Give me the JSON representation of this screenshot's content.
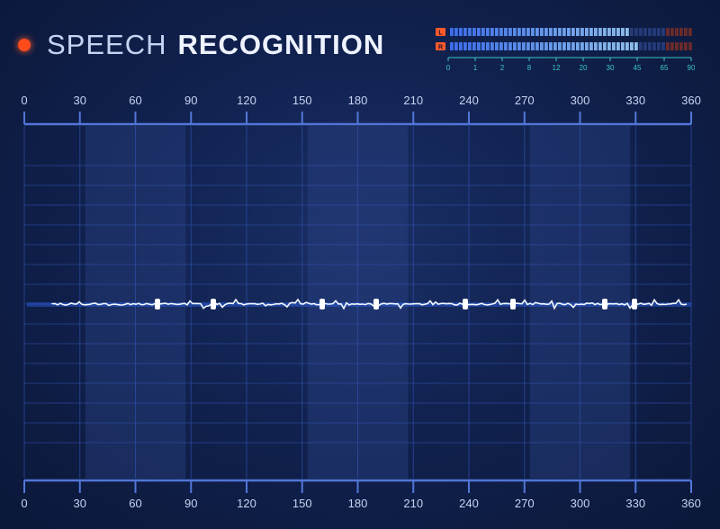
{
  "title": {
    "thin": "SPEECH",
    "bold": "RECOGNITION"
  },
  "meter": {
    "channels": [
      "L",
      "R"
    ],
    "scale": [
      "0",
      "1",
      "2",
      "8",
      "12",
      "20",
      "30",
      "45",
      "65",
      "90"
    ],
    "levels": [
      0.74,
      0.78
    ],
    "colors": {
      "accent": "#3fc4c4",
      "peak": "#ff5a2a"
    }
  },
  "axis": {
    "top_ticks": [
      "0",
      "30",
      "60",
      "90",
      "120",
      "150",
      "180",
      "210",
      "240",
      "270",
      "300",
      "330",
      "360"
    ],
    "bottom_ticks": [
      "0",
      "30",
      "60",
      "90",
      "120",
      "150",
      "180",
      "210",
      "240",
      "270",
      "300",
      "330",
      "360"
    ]
  },
  "colors": {
    "background": "#112250",
    "grid": "#2f4fa8",
    "wave": "#3fa6ff",
    "wave_core": "#e6f4ff"
  }
}
